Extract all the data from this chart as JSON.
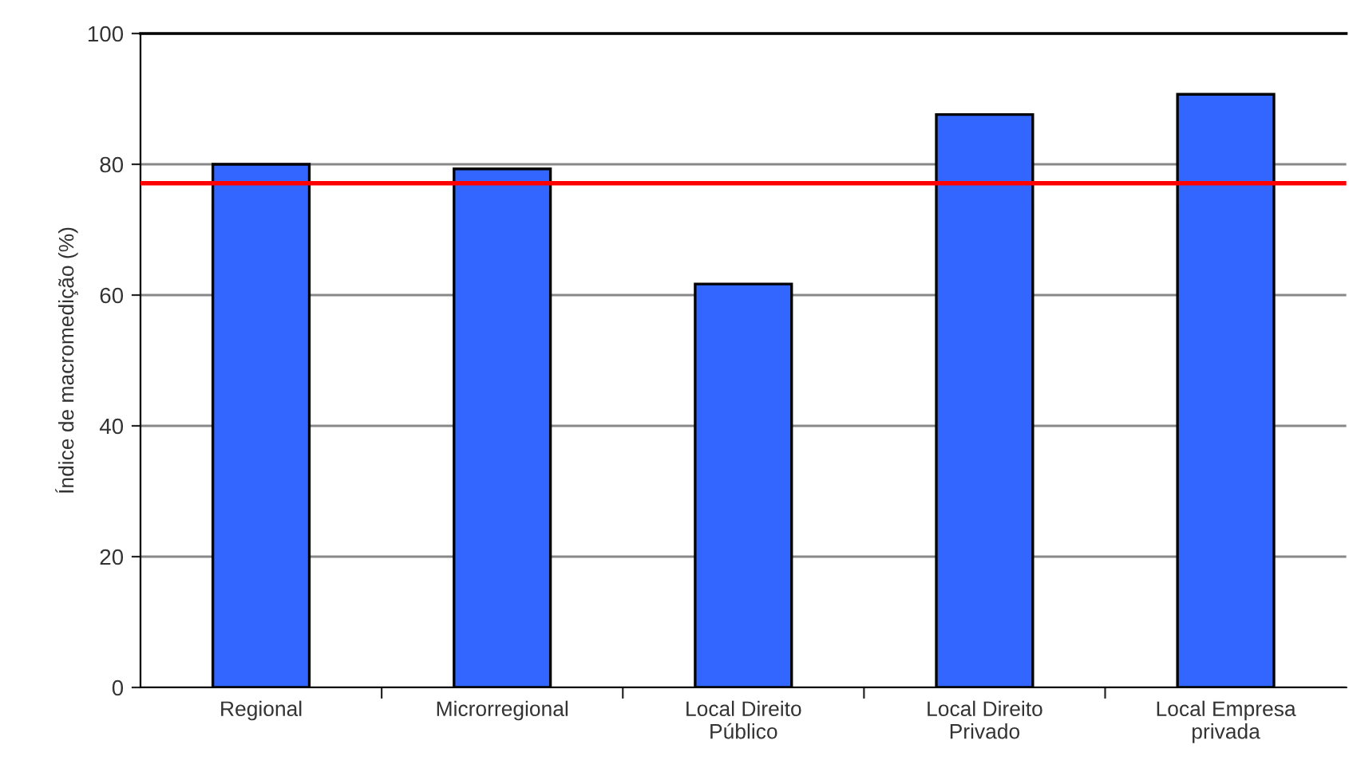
{
  "chart_data": {
    "type": "bar",
    "ylabel": "Índice de macromedição (%)",
    "categories": [
      "Regional",
      "Microrregional",
      "Local Direito\nPúblico",
      "Local Direito\nPrivado",
      "Local Empresa\nprivada"
    ],
    "values": [
      80,
      79.3,
      61.7,
      87.6,
      90.7
    ],
    "color": "#3366ff",
    "ylim": [
      0,
      100
    ],
    "yticks": [
      0,
      20,
      40,
      60,
      80,
      100
    ],
    "grid": "y",
    "ref_lines": [
      {
        "axis": "y",
        "value": 77.1,
        "color": "#ff0000"
      }
    ]
  }
}
